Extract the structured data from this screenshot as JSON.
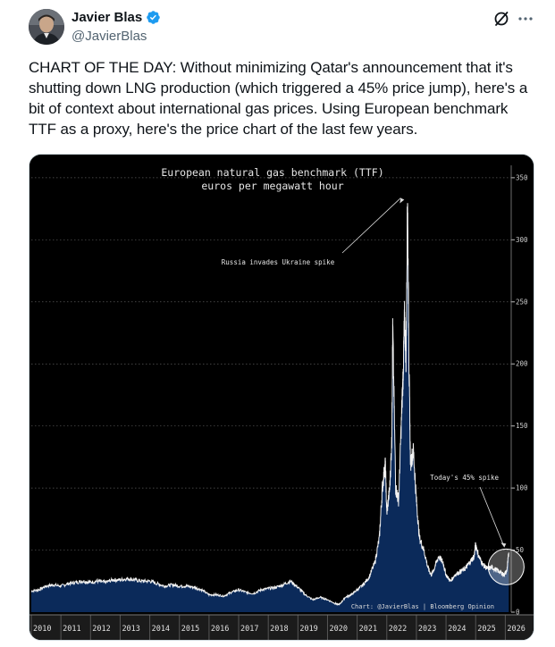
{
  "author": {
    "name": "Javier Blas",
    "handle": "@JavierBlas",
    "verified": true,
    "avatar_icon": "avatar-photo"
  },
  "actions": {
    "grok_icon": "grok-slash-icon",
    "more_icon": "more-horizontal-icon"
  },
  "tweet": {
    "text": "CHART OF THE DAY: Without minimizing Qatar's announcement that it's shutting down LNG production (which triggered a 45% price jump), here's a bit of context about international gas prices. Using European benchmark TTF as a proxy, here's the price chart of the last few years."
  },
  "colors": {
    "verified": "#1d9bf0",
    "chart_bg": "#000000",
    "chart_fill": "#0b2a5a",
    "chart_line": "#ffffff",
    "handle": "#536471"
  },
  "chart_data": {
    "type": "area",
    "title": "European natural gas benchmark (TTF)",
    "subtitle": "euros per megawatt hour",
    "xlabel": "",
    "ylabel": "",
    "xlim": [
      2010,
      2026.2
    ],
    "ylim": [
      0,
      360
    ],
    "x_ticks": [
      "2010",
      "2011",
      "2012",
      "2013",
      "2014",
      "2015",
      "2016",
      "2017",
      "2018",
      "2019",
      "2020",
      "2021",
      "2022",
      "2023",
      "2024",
      "2025",
      "2026"
    ],
    "y_ticks": [
      0,
      50,
      100,
      150,
      200,
      250,
      300,
      350
    ],
    "grid": true,
    "y_axis_position": "right",
    "series": [
      {
        "x": [
          2010.0,
          2010.25,
          2010.5,
          2010.75,
          2011.0,
          2011.25,
          2011.5,
          2011.75,
          2012.0,
          2012.25,
          2012.5,
          2012.75,
          2013.0,
          2013.25,
          2013.5,
          2013.75,
          2014.0,
          2014.25,
          2014.5,
          2014.75,
          2015.0,
          2015.25,
          2015.5,
          2015.75,
          2016.0,
          2016.25,
          2016.5,
          2016.75,
          2017.0,
          2017.25,
          2017.5,
          2017.75,
          2018.0,
          2018.25,
          2018.5,
          2018.75,
          2019.0,
          2019.25,
          2019.5,
          2019.75,
          2020.0,
          2020.25,
          2020.4,
          2020.6,
          2020.8,
          2021.0,
          2021.2,
          2021.4,
          2021.6,
          2021.75,
          2021.85,
          2021.95,
          2022.0,
          2022.1,
          2022.17,
          2022.2,
          2022.3,
          2022.4,
          2022.5,
          2022.55,
          2022.6,
          2022.65,
          2022.7,
          2022.75,
          2022.8,
          2022.9,
          2023.0,
          2023.1,
          2023.25,
          2023.4,
          2023.5,
          2023.6,
          2023.75,
          2023.9,
          2024.0,
          2024.15,
          2024.3,
          2024.5,
          2024.65,
          2024.8,
          2024.95,
          2025.0,
          2025.1,
          2025.25,
          2025.4,
          2025.55,
          2025.7,
          2025.85,
          2025.95,
          2026.05,
          2026.12
        ],
        "y": [
          17,
          18,
          21,
          22,
          21,
          23,
          24,
          25,
          24,
          25,
          24,
          26,
          26,
          27,
          26,
          25,
          25,
          23,
          21,
          22,
          21,
          21,
          20,
          18,
          14,
          14,
          13,
          16,
          18,
          16,
          15,
          18,
          19,
          20,
          22,
          25,
          20,
          14,
          10,
          12,
          10,
          7,
          6,
          12,
          14,
          18,
          22,
          28,
          40,
          60,
          100,
          120,
          80,
          100,
          140,
          230,
          100,
          90,
          160,
          190,
          240,
          200,
          340,
          200,
          120,
          130,
          90,
          60,
          50,
          35,
          30,
          35,
          45,
          40,
          30,
          25,
          30,
          33,
          35,
          40,
          45,
          55,
          45,
          38,
          35,
          36,
          34,
          32,
          30,
          33,
          48
        ]
      }
    ],
    "annotations": [
      {
        "text": "Russia invades Ukraine spike",
        "x": 2022.65,
        "y": 338
      },
      {
        "text": "Today's 45% spike",
        "x": 2026.12,
        "y": 48
      }
    ],
    "credit": "Chart: @JavierBlas | Bloomberg Opinion"
  }
}
